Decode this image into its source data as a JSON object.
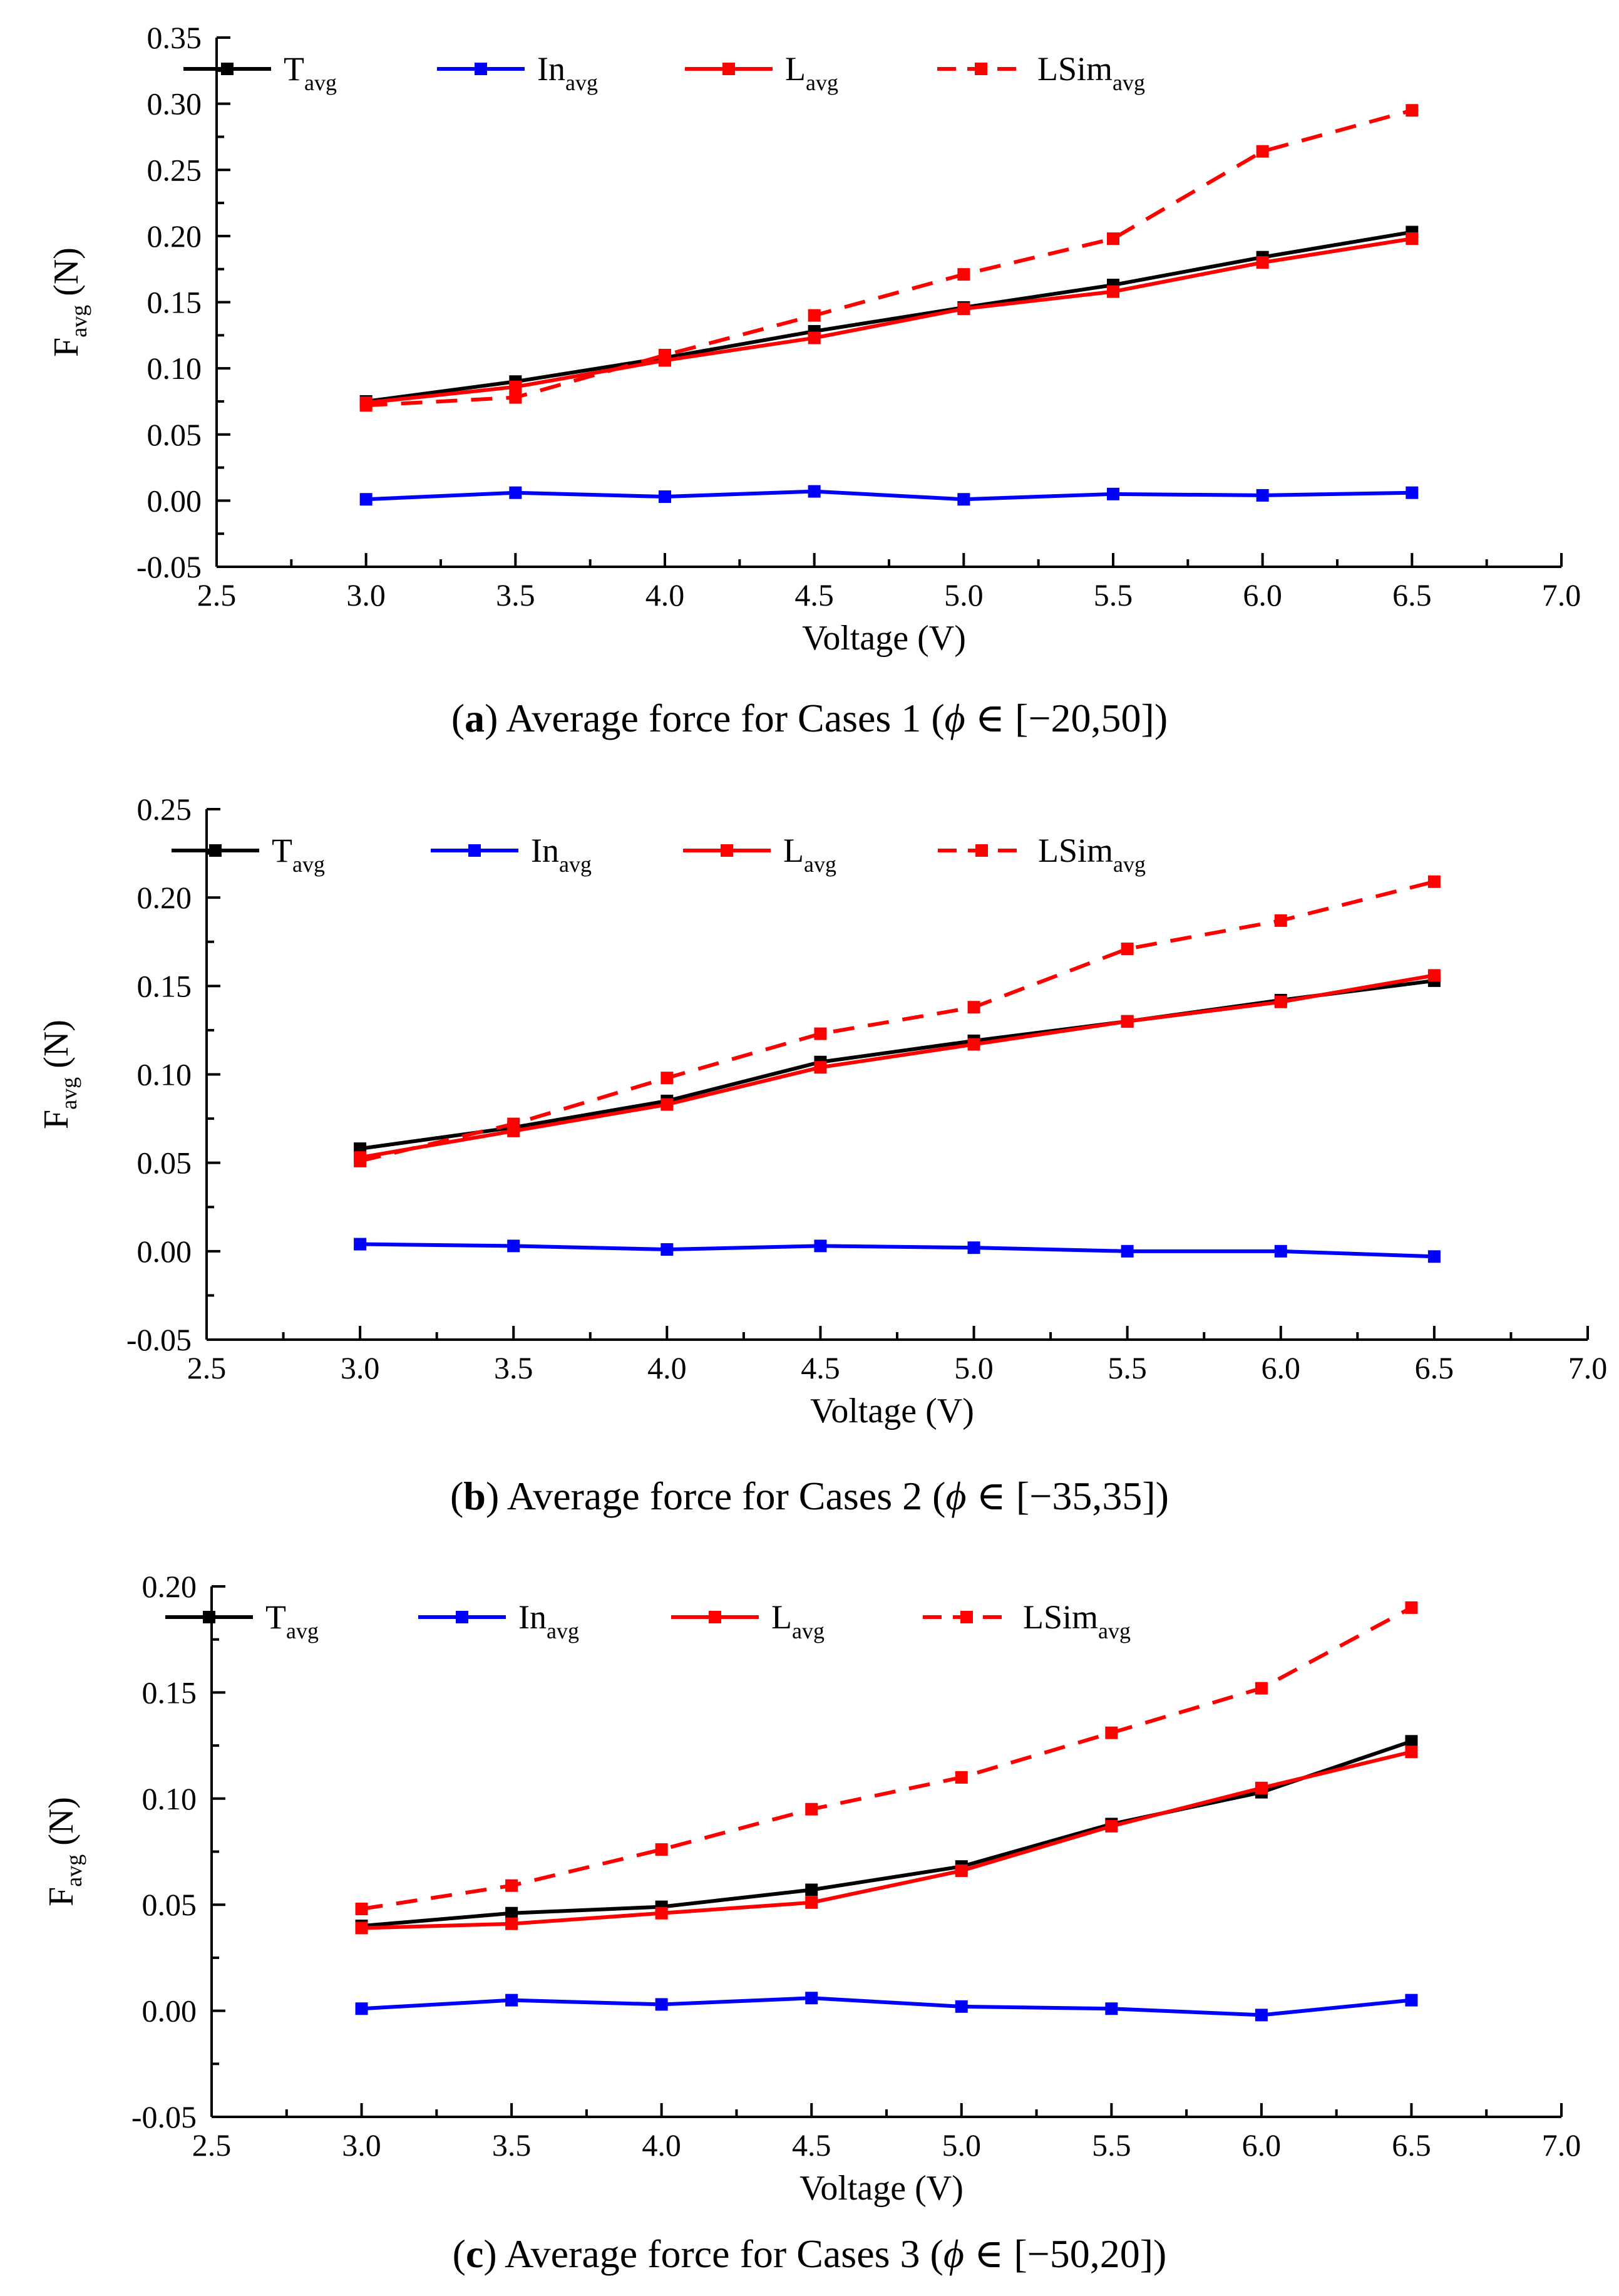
{
  "chart_data": [
    {
      "type": "line",
      "caption": {
        "letter": "a",
        "text": " Average force for Cases 1 (",
        "symbol": "ϕ",
        "range": " ∈ [−20,50])"
      },
      "xlabel": "Voltage (V)",
      "ylabel": {
        "main": "F",
        "sub": "avg",
        "unit": " (N)"
      },
      "xlim": [
        2.5,
        7.0
      ],
      "ylim": [
        -0.05,
        0.35
      ],
      "xticks": [
        "2.5",
        "3.0",
        "3.5",
        "4.0",
        "4.5",
        "5.0",
        "5.5",
        "6.0",
        "6.5",
        "7.0"
      ],
      "yticks": [
        "-0.05",
        "0.00",
        "0.05",
        "0.10",
        "0.15",
        "0.20",
        "0.25",
        "0.30",
        "0.35"
      ],
      "x": [
        3.0,
        3.5,
        4.0,
        4.5,
        5.0,
        5.5,
        6.0,
        6.5
      ],
      "series": [
        {
          "name": "T",
          "sub": "avg",
          "color": "#000000",
          "dashed": false,
          "values": [
            0.075,
            0.09,
            0.108,
            0.128,
            0.146,
            0.163,
            0.184,
            0.203
          ]
        },
        {
          "name": "In",
          "sub": "avg",
          "color": "#0000ff",
          "dashed": false,
          "values": [
            0.001,
            0.006,
            0.003,
            0.007,
            0.001,
            0.005,
            0.004,
            0.006
          ]
        },
        {
          "name": "L",
          "sub": "avg",
          "color": "#ff0000",
          "dashed": false,
          "values": [
            0.074,
            0.086,
            0.106,
            0.123,
            0.145,
            0.158,
            0.18,
            0.198
          ]
        },
        {
          "name": "LSim",
          "sub": "avg",
          "color": "#ff0000",
          "dashed": true,
          "values": [
            0.072,
            0.078,
            0.11,
            0.14,
            0.171,
            0.198,
            0.264,
            0.295
          ]
        }
      ]
    },
    {
      "type": "line",
      "caption": {
        "letter": "b",
        "text": " Average force for Cases 2 (",
        "symbol": "ϕ",
        "range": " ∈ [−35,35])"
      },
      "xlabel": "Voltage (V)",
      "ylabel": {
        "main": "F",
        "sub": "avg",
        "unit": " (N)"
      },
      "xlim": [
        2.5,
        7.0
      ],
      "ylim": [
        -0.05,
        0.25
      ],
      "xticks": [
        "2.5",
        "3.0",
        "3.5",
        "4.0",
        "4.5",
        "5.0",
        "5.5",
        "6.0",
        "6.5",
        "7.0"
      ],
      "yticks": [
        "-0.05",
        "0.00",
        "0.05",
        "0.10",
        "0.15",
        "0.20",
        "0.25"
      ],
      "x": [
        3.0,
        3.5,
        4.0,
        4.5,
        5.0,
        5.5,
        6.0,
        6.5
      ],
      "series": [
        {
          "name": "T",
          "sub": "avg",
          "color": "#000000",
          "dashed": false,
          "values": [
            0.058,
            0.07,
            0.085,
            0.107,
            0.119,
            0.13,
            0.142,
            0.153
          ]
        },
        {
          "name": "In",
          "sub": "avg",
          "color": "#0000ff",
          "dashed": false,
          "values": [
            0.004,
            0.003,
            0.001,
            0.003,
            0.002,
            0.0,
            0.0,
            -0.003
          ]
        },
        {
          "name": "L",
          "sub": "avg",
          "color": "#ff0000",
          "dashed": false,
          "values": [
            0.053,
            0.068,
            0.083,
            0.104,
            0.117,
            0.13,
            0.141,
            0.156
          ]
        },
        {
          "name": "LSim",
          "sub": "avg",
          "color": "#ff0000",
          "dashed": true,
          "values": [
            0.051,
            0.072,
            0.098,
            0.123,
            0.138,
            0.171,
            0.187,
            0.209
          ]
        }
      ]
    },
    {
      "type": "line",
      "caption": {
        "letter": "c",
        "text": " Average force for Cases 3 (",
        "symbol": "ϕ",
        "range": " ∈ [−50,20])"
      },
      "xlabel": "Voltage (V)",
      "ylabel": {
        "main": "F",
        "sub": "avg",
        "unit": " (N)"
      },
      "xlim": [
        2.5,
        7.0
      ],
      "ylim": [
        -0.05,
        0.2
      ],
      "xticks": [
        "2.5",
        "3.0",
        "3.5",
        "4.0",
        "4.5",
        "5.0",
        "5.5",
        "6.0",
        "6.5",
        "7.0"
      ],
      "yticks": [
        "-0.05",
        "0.00",
        "0.05",
        "0.10",
        "0.15",
        "0.20"
      ],
      "x": [
        3.0,
        3.5,
        4.0,
        4.5,
        5.0,
        5.5,
        6.0,
        6.5
      ],
      "series": [
        {
          "name": "T",
          "sub": "avg",
          "color": "#000000",
          "dashed": false,
          "values": [
            0.04,
            0.046,
            0.049,
            0.057,
            0.068,
            0.088,
            0.103,
            0.127
          ]
        },
        {
          "name": "In",
          "sub": "avg",
          "color": "#0000ff",
          "dashed": false,
          "values": [
            0.001,
            0.005,
            0.003,
            0.006,
            0.002,
            0.001,
            -0.002,
            0.005
          ]
        },
        {
          "name": "L",
          "sub": "avg",
          "color": "#ff0000",
          "dashed": false,
          "values": [
            0.039,
            0.041,
            0.046,
            0.051,
            0.066,
            0.087,
            0.105,
            0.122
          ]
        },
        {
          "name": "LSim",
          "sub": "avg",
          "color": "#ff0000",
          "dashed": true,
          "values": [
            0.048,
            0.059,
            0.076,
            0.095,
            0.11,
            0.131,
            0.152,
            0.19
          ]
        }
      ]
    }
  ]
}
